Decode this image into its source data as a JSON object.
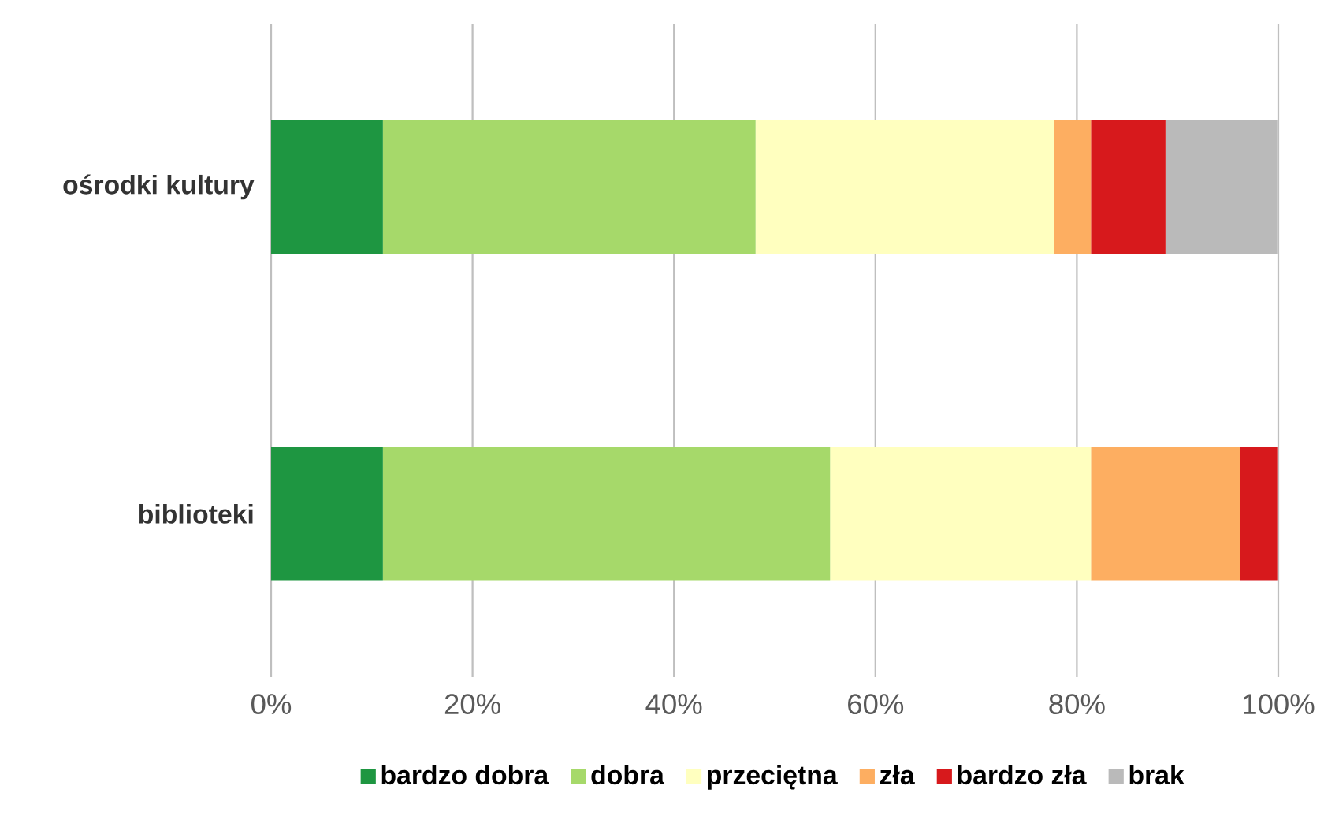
{
  "chart_data": {
    "type": "bar",
    "orientation": "horizontal",
    "stacked": true,
    "categories": [
      "ośrodki kultury",
      "biblioteki"
    ],
    "series": [
      {
        "name": "bardzo dobra",
        "color": "#1e9641",
        "values": [
          11.1,
          11.1
        ]
      },
      {
        "name": "dobra",
        "color": "#a6d96a",
        "values": [
          37.0,
          44.4
        ]
      },
      {
        "name": "przeciętna",
        "color": "#ffffbf",
        "values": [
          29.6,
          25.9
        ]
      },
      {
        "name": "zła",
        "color": "#fdae61",
        "values": [
          3.7,
          14.8
        ]
      },
      {
        "name": "bardzo zła",
        "color": "#d7191c",
        "values": [
          7.4,
          3.7
        ]
      },
      {
        "name": "brak",
        "color": "#bababa",
        "values": [
          11.1,
          0
        ]
      }
    ],
    "xlim": [
      0,
      100
    ],
    "xticks": [
      {
        "value": 0,
        "label": "0%"
      },
      {
        "value": 20,
        "label": "20%"
      },
      {
        "value": 40,
        "label": "40%"
      },
      {
        "value": 60,
        "label": "60%"
      },
      {
        "value": 80,
        "label": "80%"
      },
      {
        "value": 100,
        "label": "100%"
      }
    ],
    "grid": "x",
    "legend": "bottom"
  }
}
